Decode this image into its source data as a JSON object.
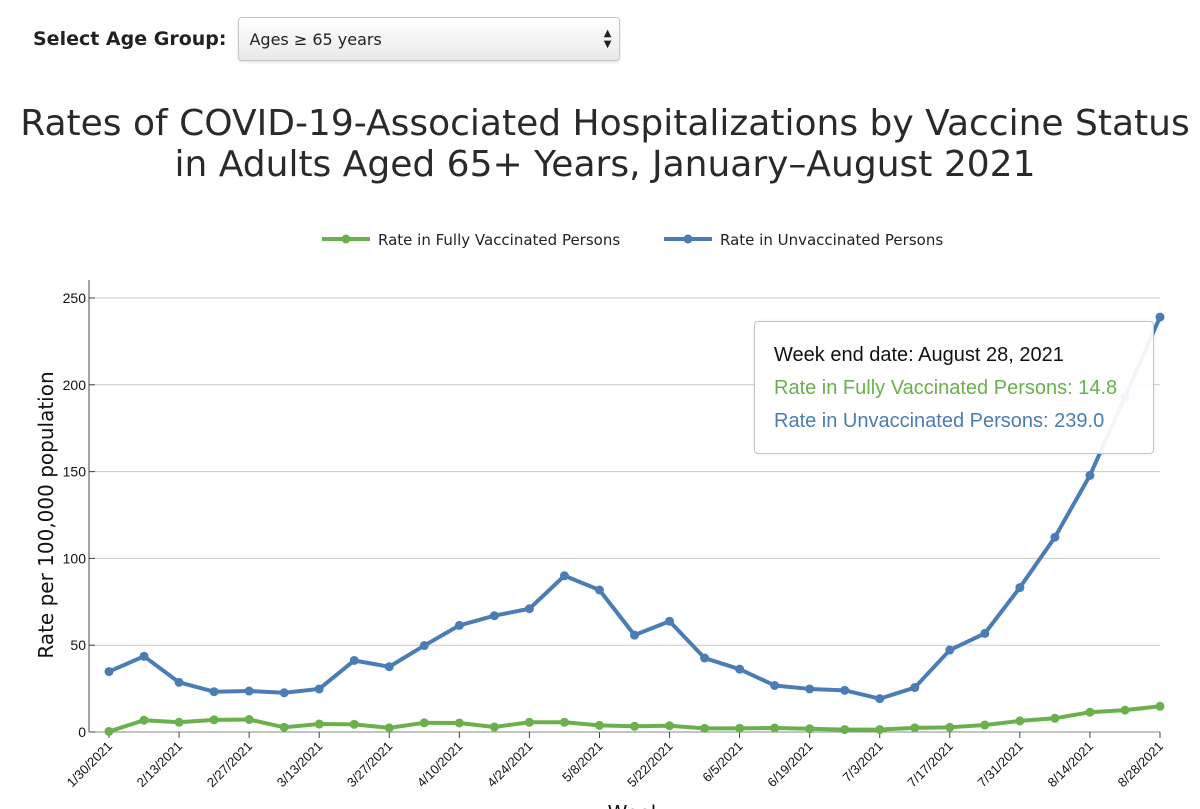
{
  "selector": {
    "label": "Select Age Group:",
    "selected": "Ages ≥ 65 years"
  },
  "title_line1": "Rates of COVID-19-Associated Hospitalizations by Vaccine Status",
  "title_line2": "in Adults Aged 65+ Years, January–August 2021",
  "tooltip": {
    "date": "Week end date: August 28, 2021",
    "vaccinated": "Rate in Fully Vaccinated Persons: 14.8",
    "unvaccinated": "Rate in Unvaccinated Persons: 239.0"
  },
  "chart_data": {
    "type": "line",
    "xlabel": "Week",
    "ylabel": "Rate per 100,000 population",
    "ylim": [
      0,
      250
    ],
    "yticks": [
      0,
      50,
      100,
      150,
      200,
      250
    ],
    "grid": true,
    "legend_position": "top",
    "x": [
      "1/30/2021",
      "2/6/2021",
      "2/13/2021",
      "2/20/2021",
      "2/27/2021",
      "3/6/2021",
      "3/13/2021",
      "3/20/2021",
      "3/27/2021",
      "4/3/2021",
      "4/10/2021",
      "4/17/2021",
      "4/24/2021",
      "5/1/2021",
      "5/8/2021",
      "5/15/2021",
      "5/22/2021",
      "5/29/2021",
      "6/5/2021",
      "6/12/2021",
      "6/19/2021",
      "6/26/2021",
      "7/3/2021",
      "7/10/2021",
      "7/17/2021",
      "7/24/2021",
      "7/31/2021",
      "8/7/2021",
      "8/14/2021",
      "8/21/2021",
      "8/28/2021"
    ],
    "xticks": [
      "1/30/2021",
      "2/13/2021",
      "2/27/2021",
      "3/13/2021",
      "3/27/2021",
      "4/10/2021",
      "4/24/2021",
      "5/8/2021",
      "5/22/2021",
      "6/5/2021",
      "6/19/2021",
      "7/3/2021",
      "7/17/2021",
      "7/31/2021",
      "8/14/2021",
      "8/28/2021"
    ],
    "series": [
      {
        "name": "Rate in Fully Vaccinated Persons",
        "color": "#6ab04c",
        "values": [
          0.3,
          6.8,
          5.6,
          7.0,
          7.2,
          2.7,
          4.6,
          4.4,
          2.4,
          5.3,
          5.2,
          2.9,
          5.6,
          5.6,
          3.8,
          3.3,
          3.6,
          2.1,
          2.1,
          2.3,
          1.9,
          1.4,
          1.4,
          2.4,
          2.7,
          4.0,
          6.4,
          7.9,
          11.4,
          12.6,
          14.8
        ]
      },
      {
        "name": "Rate in Unvaccinated Persons",
        "color": "#4a7db5",
        "values": [
          34.8,
          43.6,
          28.6,
          23.2,
          23.6,
          22.6,
          24.8,
          41.2,
          37.6,
          49.8,
          61.4,
          67.0,
          71.0,
          90.0,
          81.8,
          55.8,
          63.8,
          42.6,
          36.2,
          26.8,
          24.8,
          24.0,
          19.2,
          25.6,
          47.2,
          56.8,
          83.2,
          112.2,
          147.8,
          193.0,
          239.0
        ]
      }
    ]
  }
}
